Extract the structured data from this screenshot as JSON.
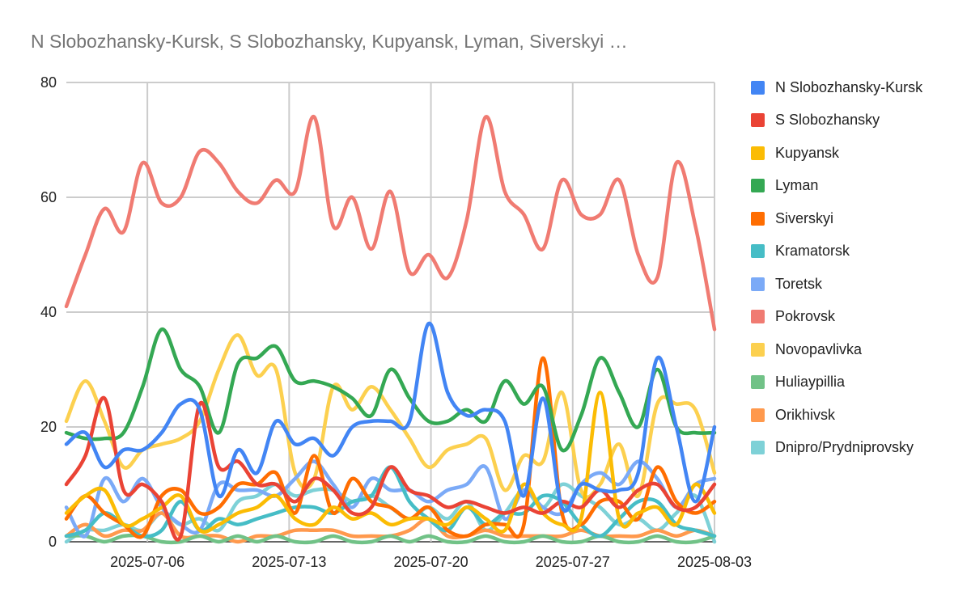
{
  "chart_data": {
    "type": "line",
    "title": "N Slobozhansky-Kursk, S Slobozhansky, Kupyansk, Lyman, Siverskyi …",
    "xlabel": "",
    "ylabel": "",
    "x_start": "2025-07-02",
    "x_end": "2025-08-03",
    "x_ticks": [
      "2025-07-06",
      "2025-07-13",
      "2025-07-20",
      "2025-07-27",
      "2025-08-03"
    ],
    "ylim": [
      0,
      80
    ],
    "y_ticks": [
      0,
      20,
      40,
      60,
      80
    ],
    "grid": true,
    "smooth": true,
    "legend_position": "right",
    "series": [
      {
        "name": "N Slobozhansky-Kursk",
        "color": "#4285F4",
        "values": [
          17,
          19,
          13,
          16,
          16,
          19,
          24,
          23,
          8,
          16,
          12,
          21,
          17,
          18,
          15,
          20,
          21,
          21,
          21,
          38,
          26,
          22,
          23,
          21,
          8,
          25,
          6,
          10,
          9,
          9,
          12,
          32,
          20,
          7,
          20
        ]
      },
      {
        "name": "S Slobozhansky",
        "color": "#EA4335",
        "values": [
          10,
          15,
          25,
          9,
          10,
          7,
          1,
          24,
          13,
          14,
          10,
          10,
          7,
          11,
          9,
          5,
          6,
          13,
          9,
          8,
          6,
          7,
          6,
          5,
          6,
          5,
          7,
          6,
          9,
          6,
          9,
          10,
          6,
          6,
          10
        ]
      },
      {
        "name": "Kupyansk",
        "color": "#FBBC04",
        "values": [
          5,
          8,
          9,
          3,
          4,
          6,
          8,
          2,
          3,
          5,
          6,
          8,
          4,
          3,
          6,
          4,
          5,
          3,
          4,
          4,
          3,
          6,
          4,
          2,
          10,
          5,
          3,
          4,
          26,
          4,
          5,
          6,
          3,
          10,
          5
        ]
      },
      {
        "name": "Lyman",
        "color": "#34A853",
        "values": [
          19,
          18,
          18,
          19,
          27,
          37,
          30,
          27,
          19,
          31,
          32,
          34,
          28,
          28,
          27,
          25,
          22,
          30,
          25,
          21,
          21,
          23,
          21,
          28,
          24,
          27,
          16,
          22,
          32,
          26,
          20,
          30,
          20,
          19,
          19
        ]
      },
      {
        "name": "Siverskyi",
        "color": "#FF6D01",
        "values": [
          4,
          8,
          5,
          3,
          1,
          8,
          9,
          5,
          6,
          10,
          10,
          12,
          5,
          15,
          5,
          11,
          7,
          6,
          4,
          6,
          2,
          1,
          3,
          3,
          3,
          32,
          5,
          3,
          7,
          7,
          4,
          13,
          7,
          5,
          7
        ]
      },
      {
        "name": "Kramatorsk",
        "color": "#46BDC6",
        "values": [
          1,
          2,
          5,
          3,
          1,
          2,
          7,
          2,
          4,
          3,
          4,
          5,
          6,
          6,
          5,
          7,
          8,
          13,
          7,
          4,
          2,
          6,
          3,
          5,
          5,
          8,
          7,
          3,
          1,
          4,
          7,
          7,
          3,
          2,
          1
        ]
      },
      {
        "name": "Toretsk",
        "color": "#7BAAF7",
        "values": [
          6,
          1,
          11,
          7,
          11,
          6,
          3,
          2,
          10,
          9,
          9,
          8,
          11,
          14,
          10,
          6,
          11,
          9,
          9,
          7,
          9,
          10,
          13,
          4,
          9,
          6,
          5,
          10,
          12,
          10,
          14,
          11,
          6,
          10,
          11
        ]
      },
      {
        "name": "Pokrovsk",
        "color": "#F07B72",
        "values": [
          41,
          50,
          58,
          54,
          66,
          59,
          60,
          68,
          66,
          61,
          59,
          63,
          61,
          74,
          55,
          60,
          51,
          61,
          47,
          50,
          46,
          56,
          74,
          61,
          57,
          51,
          63,
          57,
          57,
          63,
          50,
          46,
          66,
          55,
          37
        ]
      },
      {
        "name": "Novopavlivka",
        "color": "#FCD04F",
        "values": [
          21,
          28,
          21,
          13,
          16,
          17,
          18,
          21,
          30,
          36,
          29,
          30,
          12,
          11,
          27,
          23,
          27,
          23,
          18,
          13,
          16,
          17,
          18,
          9,
          15,
          14,
          26,
          9,
          10,
          17,
          8,
          24,
          24,
          23,
          12
        ]
      },
      {
        "name": "Huliaypillia",
        "color": "#71C287",
        "values": [
          1,
          1,
          0,
          1,
          1,
          0,
          0,
          1,
          0,
          1,
          0,
          1,
          0,
          0,
          1,
          0,
          0,
          1,
          0,
          1,
          0,
          0,
          1,
          0,
          0,
          1,
          0,
          0,
          1,
          0,
          0,
          1,
          0,
          0,
          1
        ]
      },
      {
        "name": "Orikhivsk",
        "color": "#FF994D",
        "values": [
          1,
          3,
          1,
          2,
          2,
          5,
          1,
          1,
          1,
          0,
          1,
          1,
          2,
          2,
          2,
          1,
          1,
          1,
          2,
          4,
          1,
          1,
          2,
          1,
          1,
          1,
          1,
          2,
          1,
          1,
          1,
          2,
          1,
          2,
          1
        ]
      },
      {
        "name": "Dnipro/Prydniprovsky",
        "color": "#7ED1D7",
        "values": [
          0,
          2,
          2,
          3,
          2,
          5,
          3,
          4,
          2,
          7,
          8,
          10,
          8,
          9,
          9,
          7,
          8,
          6,
          4,
          6,
          4,
          7,
          2,
          5,
          9,
          6,
          10,
          8,
          6,
          3,
          4,
          2,
          5,
          8,
          0
        ]
      }
    ]
  }
}
